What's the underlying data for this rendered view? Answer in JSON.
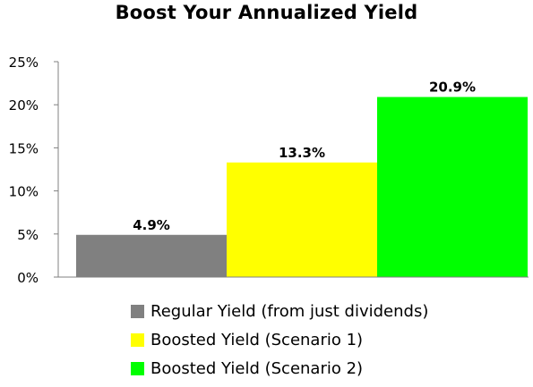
{
  "chart_data": {
    "type": "bar",
    "title": "Boost Your Annualized Yield",
    "xlabel": "",
    "ylabel": "",
    "ylim": [
      0,
      25
    ],
    "y_ticks": [
      "0%",
      "5%",
      "10%",
      "15%",
      "20%",
      "25%"
    ],
    "y_tick_values": [
      0,
      5,
      10,
      15,
      20,
      25
    ],
    "grid": false,
    "legend_position": "bottom",
    "series": [
      {
        "name": "Regular Yield (from just dividends)",
        "value": 4.9,
        "label": "4.9%",
        "color": "#808080"
      },
      {
        "name": "Boosted Yield (Scenario 1)",
        "value": 13.3,
        "label": "13.3%",
        "color": "#ffff00"
      },
      {
        "name": "Boosted Yield (Scenario 2)",
        "value": 20.9,
        "label": "20.9%",
        "color": "#00ff00"
      }
    ]
  }
}
